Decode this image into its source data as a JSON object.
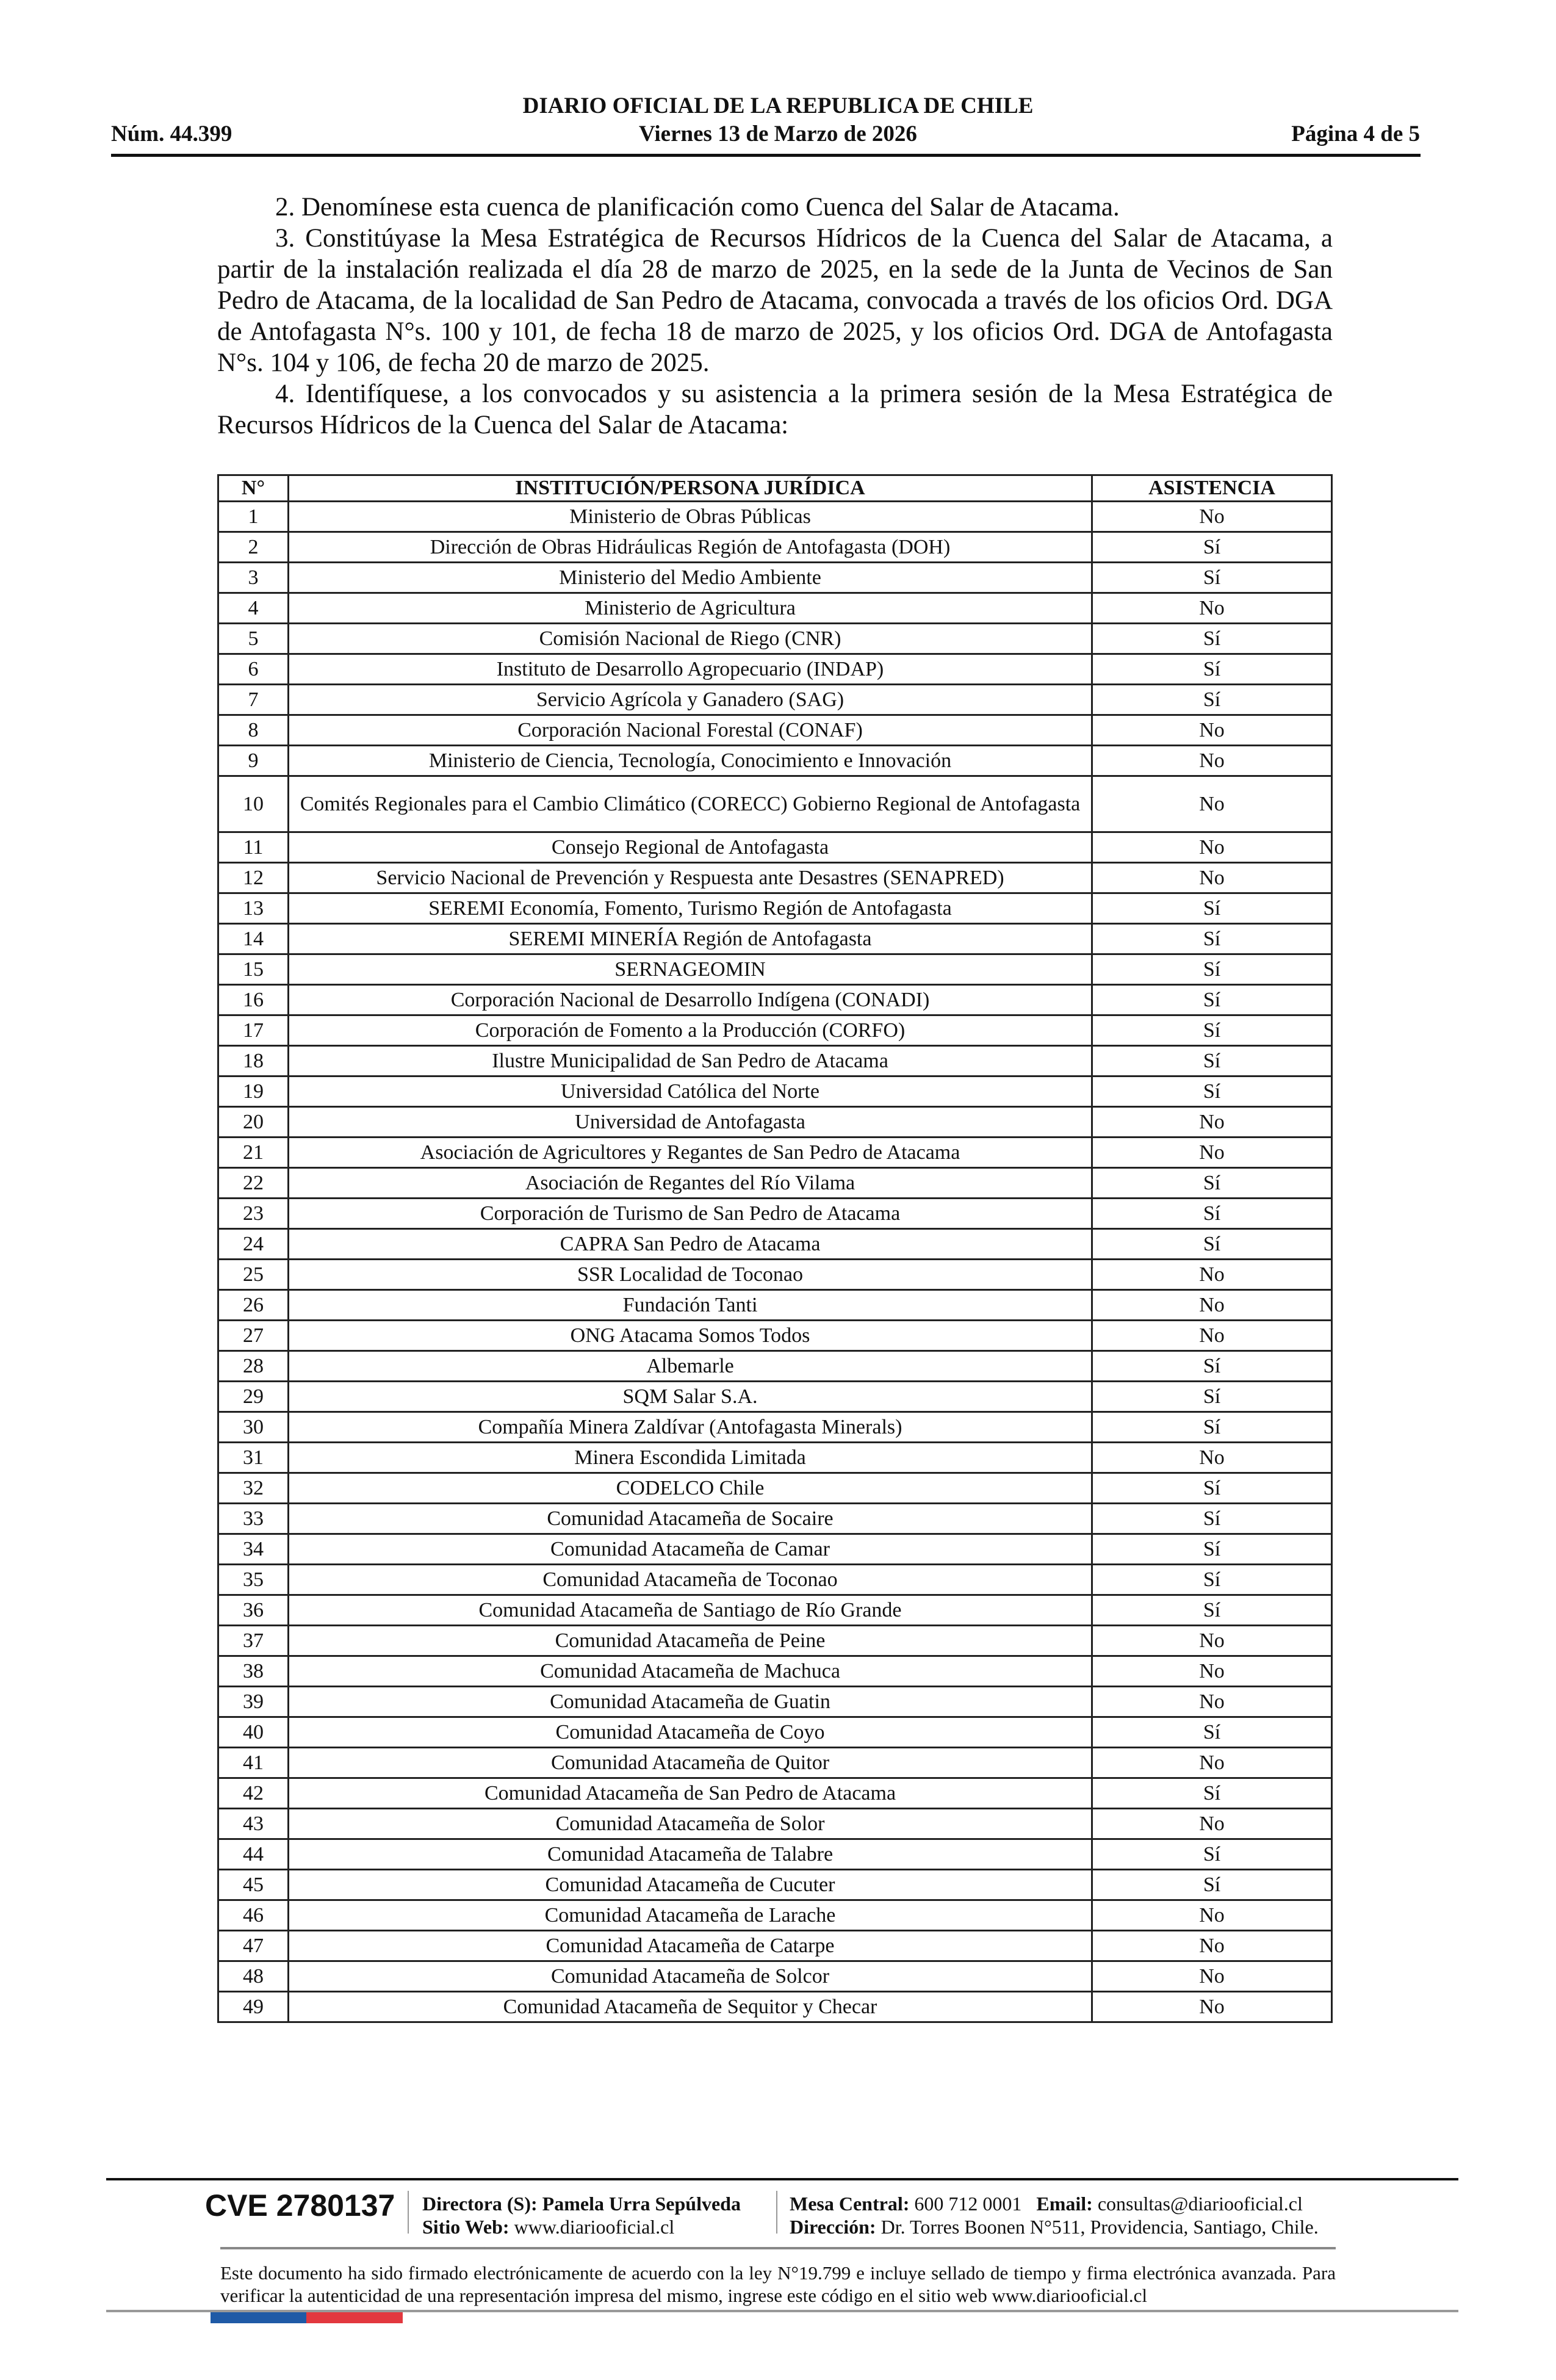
{
  "header": {
    "title": "DIARIO OFICIAL DE LA REPUBLICA DE CHILE",
    "number": "Núm. 44.399",
    "date": "Viernes 13 de Marzo de 2026",
    "page": "Página 4 de 5"
  },
  "body": {
    "paragraphs": [
      "2. Denomínese esta cuenca de planificación como Cuenca del Salar de Atacama.",
      "3. Constitúyase la Mesa Estratégica de Recursos Hídricos de la Cuenca del Salar de Atacama, a partir de la instalación realizada el día 28 de marzo de 2025, en la sede de la Junta de Vecinos de San Pedro de Atacama, de la localidad de San Pedro de Atacama, convocada a través de los oficios Ord. DGA de Antofagasta N°s. 100 y 101, de fecha 18 de marzo de 2025, y los oficios Ord. DGA de Antofagasta N°s. 104 y 106, de fecha 20 de marzo de 2025.",
      "4. Identifíquese, a los convocados y su asistencia a la primera sesión de la Mesa Estratégica de Recursos Hídricos de la Cuenca del Salar de Atacama:"
    ]
  },
  "table": {
    "headers": [
      "N°",
      "INSTITUCIÓN/PERSONA JURÍDICA",
      "ASISTENCIA"
    ],
    "rows": [
      [
        "1",
        "Ministerio de Obras Públicas",
        "No"
      ],
      [
        "2",
        "Dirección de Obras Hidráulicas Región de Antofagasta (DOH)",
        "Sí"
      ],
      [
        "3",
        "Ministerio del Medio Ambiente",
        "Sí"
      ],
      [
        "4",
        "Ministerio de Agricultura",
        "No"
      ],
      [
        "5",
        "Comisión Nacional de Riego (CNR)",
        "Sí"
      ],
      [
        "6",
        "Instituto de Desarrollo Agropecuario (INDAP)",
        "Sí"
      ],
      [
        "7",
        "Servicio Agrícola y Ganadero (SAG)",
        "Sí"
      ],
      [
        "8",
        "Corporación Nacional Forestal (CONAF)",
        "No"
      ],
      [
        "9",
        "Ministerio de Ciencia, Tecnología, Conocimiento e Innovación",
        "No"
      ],
      [
        "10",
        "Comités Regionales para el Cambio Climático (CORECC) Gobierno Regional de Antofagasta",
        "No"
      ],
      [
        "11",
        "Consejo Regional de Antofagasta",
        "No"
      ],
      [
        "12",
        "Servicio Nacional de Prevención y Respuesta ante Desastres (SENAPRED)",
        "No"
      ],
      [
        "13",
        "SEREMI Economía, Fomento, Turismo Región de Antofagasta",
        "Sí"
      ],
      [
        "14",
        "SEREMI MINERÍA Región de Antofagasta",
        "Sí"
      ],
      [
        "15",
        "SERNAGEOMIN",
        "Sí"
      ],
      [
        "16",
        "Corporación Nacional de Desarrollo Indígena (CONADI)",
        "Sí"
      ],
      [
        "17",
        "Corporación de Fomento a la Producción (CORFO)",
        "Sí"
      ],
      [
        "18",
        "Ilustre Municipalidad de San Pedro de Atacama",
        "Sí"
      ],
      [
        "19",
        "Universidad Católica del Norte",
        "Sí"
      ],
      [
        "20",
        "Universidad de Antofagasta",
        "No"
      ],
      [
        "21",
        "Asociación de Agricultores y Regantes de San Pedro de Atacama",
        "No"
      ],
      [
        "22",
        "Asociación de Regantes del Río Vilama",
        "Sí"
      ],
      [
        "23",
        "Corporación de Turismo de San Pedro de Atacama",
        "Sí"
      ],
      [
        "24",
        "CAPRA San Pedro de Atacama",
        "Sí"
      ],
      [
        "25",
        "SSR Localidad de Toconao",
        "No"
      ],
      [
        "26",
        "Fundación Tanti",
        "No"
      ],
      [
        "27",
        "ONG Atacama Somos Todos",
        "No"
      ],
      [
        "28",
        "Albemarle",
        "Sí"
      ],
      [
        "29",
        "SQM Salar S.A.",
        "Sí"
      ],
      [
        "30",
        "Compañía Minera Zaldívar (Antofagasta Minerals)",
        "Sí"
      ],
      [
        "31",
        "Minera Escondida Limitada",
        "No"
      ],
      [
        "32",
        "CODELCO Chile",
        "Sí"
      ],
      [
        "33",
        "Comunidad Atacameña de Socaire",
        "Sí"
      ],
      [
        "34",
        "Comunidad Atacameña de Camar",
        "Sí"
      ],
      [
        "35",
        "Comunidad Atacameña de Toconao",
        "Sí"
      ],
      [
        "36",
        "Comunidad Atacameña de Santiago de Río Grande",
        "Sí"
      ],
      [
        "37",
        "Comunidad Atacameña de Peine",
        "No"
      ],
      [
        "38",
        "Comunidad Atacameña de Machuca",
        "No"
      ],
      [
        "39",
        "Comunidad Atacameña de Guatin",
        "No"
      ],
      [
        "40",
        "Comunidad Atacameña de Coyo",
        "Sí"
      ],
      [
        "41",
        "Comunidad Atacameña de Quitor",
        "No"
      ],
      [
        "42",
        "Comunidad Atacameña de San Pedro de Atacama",
        "Sí"
      ],
      [
        "43",
        "Comunidad Atacameña de Solor",
        "No"
      ],
      [
        "44",
        "Comunidad Atacameña de Talabre",
        "Sí"
      ],
      [
        "45",
        "Comunidad Atacameña de Cucuter",
        "Sí"
      ],
      [
        "46",
        "Comunidad Atacameña de Larache",
        "No"
      ],
      [
        "47",
        "Comunidad Atacameña de Catarpe",
        "No"
      ],
      [
        "48",
        "Comunidad Atacameña de Solcor",
        "No"
      ],
      [
        "49",
        "Comunidad Atacameña de Sequitor y Checar",
        "No"
      ]
    ]
  },
  "footer": {
    "cve": "CVE 2780137",
    "director_label": "Directora (S):",
    "director": "Pamela Urra Sepúlveda",
    "web_label": "Sitio Web:",
    "web": "www.diariooficial.cl",
    "phone_label": "Mesa Central:",
    "phone": "600 712 0001",
    "email_label": "Email:",
    "email": "consultas@diariooficial.cl",
    "address_label": "Dirección:",
    "address": "Dr. Torres Boonen N°511, Providencia, Santiago, Chile.",
    "disclaimer": "Este documento ha sido firmado electrónicamente de acuerdo con la ley N°19.799 e incluye sellado de tiempo y firma electrónica avanzada. Para verificar la autenticidad de una representación impresa del mismo, ingrese este código en el sitio web www.diariooficial.cl",
    "flag_colors": [
      "#1f5aa6",
      "#e2383f"
    ]
  }
}
